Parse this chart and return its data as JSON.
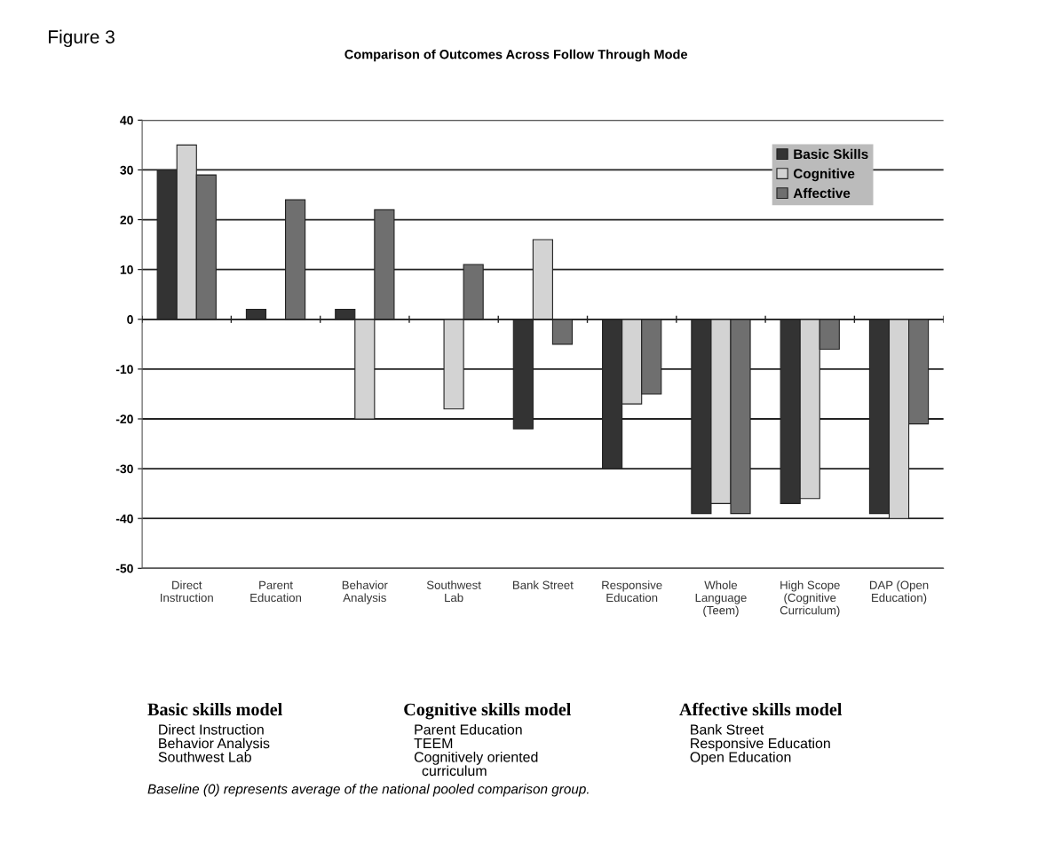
{
  "chart_data": {
    "type": "bar",
    "title": "Figure 3",
    "subtitle": "Comparison of Outcomes Across Follow Through Mode",
    "categories": [
      "Direct\nInstruction",
      "Parent\nEducation",
      "Behavior\nAnalysis",
      "Southwest\nLab",
      "Bank Street",
      "Responsive\nEducation",
      "Whole\nLanguage\n(Teem)",
      "High Scope\n(Cognitive\nCurriculum)",
      "DAP (Open\nEducation)"
    ],
    "series": [
      {
        "name": "Basic Skills",
        "color": "#333333",
        "values": [
          30,
          2,
          2,
          null,
          -22,
          -30,
          -39,
          -37,
          -39
        ]
      },
      {
        "name": "Cognitive",
        "color": "#d3d3d3",
        "values": [
          35,
          null,
          -20,
          -18,
          16,
          -17,
          -37,
          -36,
          -40
        ]
      },
      {
        "name": "Affective",
        "color": "#6f6f6f",
        "values": [
          29,
          24,
          22,
          11,
          -5,
          -15,
          -39,
          -6,
          -21
        ]
      }
    ],
    "ylim": [
      -50,
      40
    ],
    "yticks": [
      -50,
      -40,
      -30,
      -20,
      -10,
      0,
      10,
      20,
      30,
      40
    ],
    "grid": "y",
    "legend": "top right",
    "annotations": [
      "Basic skills model",
      "Direct Instruction\nBehavior Analysis\nSouthwest Lab",
      "Cognitive skills model",
      "Parent Education\nTEEM\nCognitively oriented\n  curriculum",
      "Affective skills model",
      "Bank Street\nResponsive Education\nOpen Education",
      "Baseline (0) represents average of the national pooled comparison group."
    ]
  }
}
